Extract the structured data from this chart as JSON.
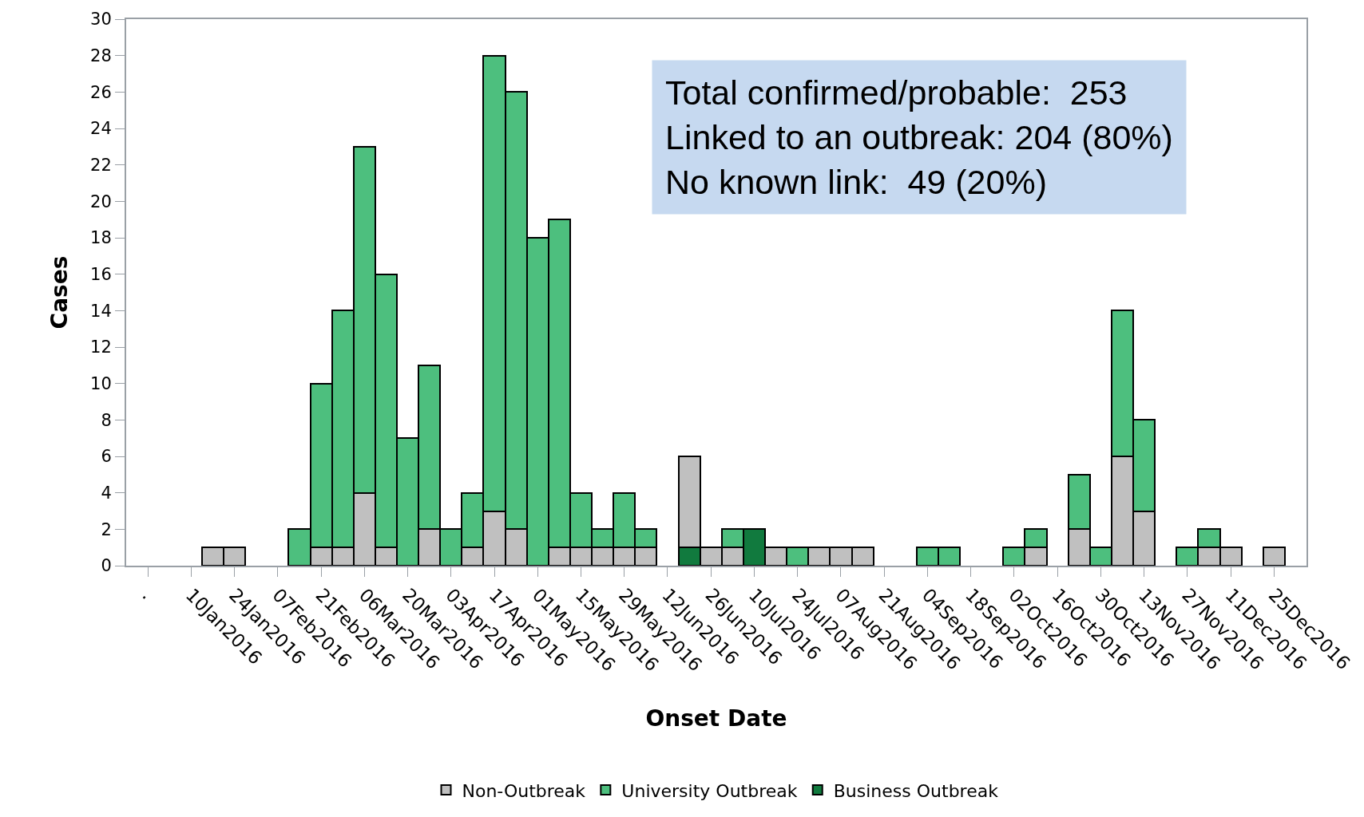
{
  "chart_data": {
    "type": "bar",
    "stacked": true,
    "xlabel": "Onset Date",
    "ylabel": "Cases",
    "categories": [
      ".",
      null,
      "10Jan2016",
      null,
      "24Jan2016",
      null,
      "07Feb2016",
      null,
      "21Feb2016",
      null,
      "06Mar2016",
      null,
      "20Mar2016",
      null,
      "03Apr2016",
      null,
      "17Apr2016",
      null,
      "01May2016",
      null,
      "15May2016",
      null,
      "29May2016",
      null,
      "12Jun2016",
      null,
      "26Jun2016",
      null,
      "10Jul2016",
      null,
      "24Jul2016",
      null,
      "07Aug2016",
      null,
      "21Aug2016",
      null,
      "04Sep2016",
      null,
      "18Sep2016",
      null,
      "02Oct2016",
      null,
      "16Oct2016",
      null,
      "30Oct2016",
      null,
      "13Nov2016",
      null,
      "27Nov2016",
      null,
      "11Dec2016",
      null,
      "25Dec2016"
    ],
    "series": [
      {
        "name": "Business Outbreak",
        "color": "#117a3e",
        "values": [
          null,
          null,
          null,
          null,
          null,
          null,
          null,
          null,
          null,
          null,
          null,
          null,
          null,
          null,
          null,
          null,
          null,
          null,
          null,
          null,
          null,
          null,
          null,
          null,
          null,
          1,
          null,
          null,
          2,
          null,
          null,
          null,
          null,
          null,
          null,
          null,
          null,
          null,
          null,
          null,
          null,
          null,
          null,
          null,
          null,
          null,
          null,
          null,
          null,
          null,
          null,
          null,
          null
        ]
      },
      {
        "name": "Non-Outbreak",
        "color": "#c0c0c0",
        "values": [
          null,
          null,
          null,
          1,
          1,
          null,
          null,
          null,
          1,
          1,
          4,
          1,
          null,
          2,
          null,
          1,
          3,
          2,
          null,
          1,
          1,
          1,
          1,
          1,
          null,
          5,
          1,
          1,
          null,
          1,
          null,
          1,
          1,
          1,
          null,
          null,
          null,
          null,
          null,
          null,
          null,
          1,
          null,
          2,
          null,
          6,
          3,
          null,
          null,
          1,
          1,
          null,
          1
        ]
      },
      {
        "name": "University Outbreak",
        "color": "#4dbf7e",
        "values": [
          null,
          null,
          null,
          null,
          null,
          null,
          null,
          2,
          9,
          13,
          19,
          15,
          7,
          9,
          2,
          3,
          25,
          24,
          18,
          18,
          3,
          1,
          3,
          1,
          null,
          null,
          null,
          1,
          null,
          null,
          1,
          null,
          null,
          null,
          null,
          null,
          1,
          1,
          null,
          null,
          1,
          1,
          null,
          3,
          1,
          8,
          5,
          null,
          1,
          1,
          null,
          null,
          null
        ]
      }
    ],
    "ylim": [
      0,
      30
    ],
    "yticks": [
      0,
      2,
      4,
      6,
      8,
      10,
      12,
      14,
      16,
      18,
      20,
      22,
      24,
      26,
      28,
      30
    ],
    "legend": "bottom",
    "annotations": [
      "Total confirmed/probable:  253",
      "Linked to an outbreak: 204 (80%)",
      "No known link:  49 (20%)"
    ]
  }
}
